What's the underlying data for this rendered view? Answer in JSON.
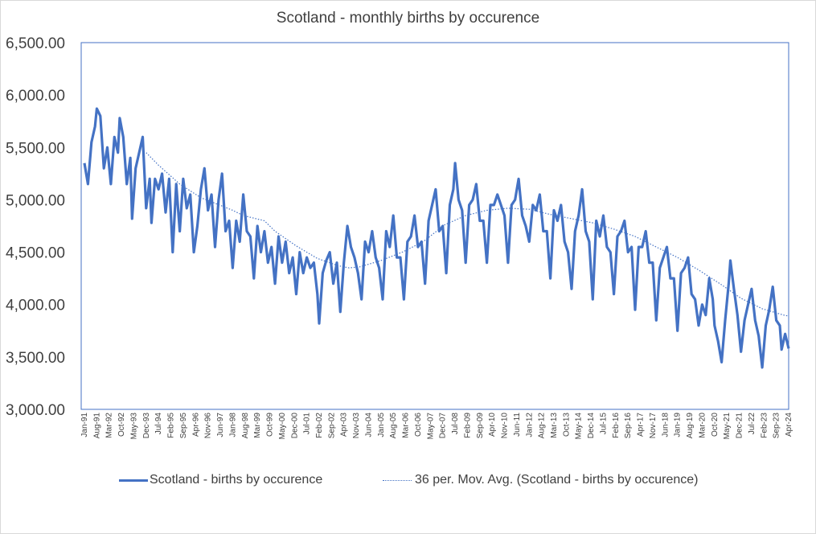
{
  "colors": {
    "series": "#4472c4",
    "axis": "#4472c4",
    "text": "#404040"
  },
  "chart_data": {
    "type": "line",
    "title": "Scotland - monthly births by occurence",
    "xlabel": "",
    "ylabel": "",
    "ylim": [
      3000,
      6500
    ],
    "yticks": [
      "3,000.00",
      "3,500.00",
      "4,000.00",
      "4,500.00",
      "5,000.00",
      "5,500.00",
      "6,000.00",
      "6,500.00"
    ],
    "xticks": [
      "Jan-91",
      "Aug-91",
      "Mar-92",
      "Oct-92",
      "May-93",
      "Dec-93",
      "Jul-94",
      "Feb-95",
      "Sep-95",
      "Apr-96",
      "Nov-96",
      "Jun-97",
      "Jan-98",
      "Aug-98",
      "Mar-99",
      "Oct-99",
      "May-00",
      "Dec-00",
      "Jul-01",
      "Feb-02",
      "Sep-02",
      "Apr-03",
      "Nov-03",
      "Jun-04",
      "Jan-05",
      "Aug-05",
      "Mar-06",
      "Oct-06",
      "May-07",
      "Dec-07",
      "Jul-08",
      "Feb-09",
      "Sep-09",
      "Apr-10",
      "Nov-10",
      "Jun-11",
      "Jan-12",
      "Aug-12",
      "Mar-13",
      "Oct-13",
      "May-14",
      "Dec-14",
      "Jul-15",
      "Feb-16",
      "Sep-16",
      "Apr-17",
      "Nov-17",
      "Jun-18",
      "Jan-19",
      "Aug-19",
      "Mar-20",
      "Oct-20",
      "May-21",
      "Dec-21",
      "Jul-22",
      "Feb-23",
      "Sep-23",
      "Apr-24"
    ],
    "grid": false,
    "legend_position": "bottom",
    "series": [
      {
        "name": "Scotland - births by occurence",
        "style": "solid",
        "anchors": [
          [
            "Jan-91",
            5350
          ],
          [
            "Mar-91",
            5150
          ],
          [
            "May-91",
            5550
          ],
          [
            "Jul-91",
            5700
          ],
          [
            "Aug-91",
            5870
          ],
          [
            "Oct-91",
            5800
          ],
          [
            "Dec-91",
            5300
          ],
          [
            "Feb-92",
            5500
          ],
          [
            "Apr-92",
            5150
          ],
          [
            "Jun-92",
            5600
          ],
          [
            "Aug-92",
            5450
          ],
          [
            "Sep-92",
            5780
          ],
          [
            "Nov-92",
            5600
          ],
          [
            "Jan-93",
            5150
          ],
          [
            "Mar-93",
            5400
          ],
          [
            "Apr-93",
            4820
          ],
          [
            "Jun-93",
            5300
          ],
          [
            "Aug-93",
            5450
          ],
          [
            "Oct-93",
            5600
          ],
          [
            "Dec-93",
            4920
          ],
          [
            "Feb-94",
            5200
          ],
          [
            "Mar-94",
            4780
          ],
          [
            "May-94",
            5200
          ],
          [
            "Jul-94",
            5100
          ],
          [
            "Sep-94",
            5250
          ],
          [
            "Nov-94",
            4880
          ],
          [
            "Jan-95",
            5200
          ],
          [
            "Mar-95",
            4500
          ],
          [
            "May-95",
            5150
          ],
          [
            "Jul-95",
            4700
          ],
          [
            "Sep-95",
            5200
          ],
          [
            "Nov-95",
            4920
          ],
          [
            "Jan-96",
            5050
          ],
          [
            "Mar-96",
            4500
          ],
          [
            "May-96",
            4750
          ],
          [
            "Jul-96",
            5100
          ],
          [
            "Sep-96",
            5300
          ],
          [
            "Nov-96",
            4900
          ],
          [
            "Jan-97",
            5050
          ],
          [
            "Mar-97",
            4550
          ],
          [
            "May-97",
            5000
          ],
          [
            "Jul-97",
            5250
          ],
          [
            "Sep-97",
            4700
          ],
          [
            "Nov-97",
            4800
          ],
          [
            "Jan-98",
            4350
          ],
          [
            "Mar-98",
            4800
          ],
          [
            "May-98",
            4600
          ],
          [
            "Jul-98",
            5050
          ],
          [
            "Sep-98",
            4700
          ],
          [
            "Nov-98",
            4650
          ],
          [
            "Jan-99",
            4250
          ],
          [
            "Mar-99",
            4750
          ],
          [
            "May-99",
            4500
          ],
          [
            "Jul-99",
            4700
          ],
          [
            "Sep-99",
            4400
          ],
          [
            "Nov-99",
            4550
          ],
          [
            "Jan-00",
            4200
          ],
          [
            "Mar-00",
            4650
          ],
          [
            "May-00",
            4400
          ],
          [
            "Jul-00",
            4600
          ],
          [
            "Sep-00",
            4300
          ],
          [
            "Nov-00",
            4450
          ],
          [
            "Jan-01",
            4100
          ],
          [
            "Mar-01",
            4500
          ],
          [
            "May-01",
            4300
          ],
          [
            "Jul-01",
            4450
          ],
          [
            "Sep-01",
            4350
          ],
          [
            "Nov-01",
            4400
          ],
          [
            "Jan-02",
            4100
          ],
          [
            "Feb-02",
            3820
          ],
          [
            "Apr-02",
            4300
          ],
          [
            "Jun-02",
            4420
          ],
          [
            "Aug-02",
            4500
          ],
          [
            "Oct-02",
            4200
          ],
          [
            "Dec-02",
            4400
          ],
          [
            "Feb-03",
            3930
          ],
          [
            "Apr-03",
            4400
          ],
          [
            "Jun-03",
            4750
          ],
          [
            "Aug-03",
            4550
          ],
          [
            "Oct-03",
            4450
          ],
          [
            "Dec-03",
            4300
          ],
          [
            "Feb-04",
            4050
          ],
          [
            "Apr-04",
            4600
          ],
          [
            "Jun-04",
            4500
          ],
          [
            "Aug-04",
            4700
          ],
          [
            "Oct-04",
            4450
          ],
          [
            "Dec-04",
            4350
          ],
          [
            "Feb-05",
            4050
          ],
          [
            "Apr-05",
            4700
          ],
          [
            "Jun-05",
            4550
          ],
          [
            "Aug-05",
            4850
          ],
          [
            "Oct-05",
            4450
          ],
          [
            "Dec-05",
            4450
          ],
          [
            "Feb-06",
            4050
          ],
          [
            "Apr-06",
            4600
          ],
          [
            "Jun-06",
            4650
          ],
          [
            "Aug-06",
            4850
          ],
          [
            "Oct-06",
            4550
          ],
          [
            "Dec-06",
            4600
          ],
          [
            "Feb-07",
            4200
          ],
          [
            "Apr-07",
            4800
          ],
          [
            "Jun-07",
            4950
          ],
          [
            "Aug-07",
            5100
          ],
          [
            "Oct-07",
            4700
          ],
          [
            "Dec-07",
            4750
          ],
          [
            "Feb-08",
            4300
          ],
          [
            "Apr-08",
            4950
          ],
          [
            "Jun-08",
            5100
          ],
          [
            "Jul-08",
            5350
          ],
          [
            "Sep-08",
            5000
          ],
          [
            "Nov-08",
            4900
          ],
          [
            "Jan-09",
            4400
          ],
          [
            "Mar-09",
            4950
          ],
          [
            "May-09",
            5000
          ],
          [
            "Jul-09",
            5150
          ],
          [
            "Sep-09",
            4800
          ],
          [
            "Nov-09",
            4800
          ],
          [
            "Jan-10",
            4400
          ],
          [
            "Mar-10",
            4950
          ],
          [
            "May-10",
            4950
          ],
          [
            "Jul-10",
            5050
          ],
          [
            "Sep-10",
            4950
          ],
          [
            "Nov-10",
            4850
          ],
          [
            "Jan-11",
            4400
          ],
          [
            "Mar-11",
            4950
          ],
          [
            "May-11",
            5000
          ],
          [
            "Jul-11",
            5200
          ],
          [
            "Sep-11",
            4850
          ],
          [
            "Nov-11",
            4750
          ],
          [
            "Jan-12",
            4600
          ],
          [
            "Mar-12",
            4950
          ],
          [
            "May-12",
            4900
          ],
          [
            "Jul-12",
            5050
          ],
          [
            "Sep-12",
            4700
          ],
          [
            "Nov-12",
            4700
          ],
          [
            "Jan-13",
            4250
          ],
          [
            "Mar-13",
            4900
          ],
          [
            "May-13",
            4800
          ],
          [
            "Jul-13",
            4950
          ],
          [
            "Sep-13",
            4600
          ],
          [
            "Nov-13",
            4500
          ],
          [
            "Jan-14",
            4150
          ],
          [
            "Mar-14",
            4700
          ],
          [
            "May-14",
            4850
          ],
          [
            "Jul-14",
            5100
          ],
          [
            "Sep-14",
            4700
          ],
          [
            "Nov-14",
            4600
          ],
          [
            "Jan-15",
            4050
          ],
          [
            "Mar-15",
            4800
          ],
          [
            "May-15",
            4650
          ],
          [
            "Jul-15",
            4850
          ],
          [
            "Sep-15",
            4550
          ],
          [
            "Nov-15",
            4500
          ],
          [
            "Jan-16",
            4100
          ],
          [
            "Mar-16",
            4650
          ],
          [
            "May-16",
            4700
          ],
          [
            "Jul-16",
            4800
          ],
          [
            "Sep-16",
            4500
          ],
          [
            "Nov-16",
            4550
          ],
          [
            "Jan-17",
            3950
          ],
          [
            "Mar-17",
            4550
          ],
          [
            "May-17",
            4550
          ],
          [
            "Jul-17",
            4700
          ],
          [
            "Sep-17",
            4400
          ],
          [
            "Nov-17",
            4400
          ],
          [
            "Jan-18",
            3850
          ],
          [
            "Mar-18",
            4350
          ],
          [
            "May-18",
            4450
          ],
          [
            "Jul-18",
            4550
          ],
          [
            "Sep-18",
            4250
          ],
          [
            "Nov-18",
            4250
          ],
          [
            "Jan-19",
            3750
          ],
          [
            "Mar-19",
            4300
          ],
          [
            "May-19",
            4350
          ],
          [
            "Jul-19",
            4450
          ],
          [
            "Sep-19",
            4100
          ],
          [
            "Nov-19",
            4050
          ],
          [
            "Jan-20",
            3800
          ],
          [
            "Mar-20",
            4000
          ],
          [
            "May-20",
            3900
          ],
          [
            "Jul-20",
            4250
          ],
          [
            "Sep-20",
            4050
          ],
          [
            "Oct-20",
            3800
          ],
          [
            "Dec-20",
            3650
          ],
          [
            "Feb-21",
            3450
          ],
          [
            "Apr-21",
            3850
          ],
          [
            "Jun-21",
            4200
          ],
          [
            "Jul-21",
            4420
          ],
          [
            "Sep-21",
            4150
          ],
          [
            "Nov-21",
            3900
          ],
          [
            "Jan-22",
            3550
          ],
          [
            "Mar-22",
            3850
          ],
          [
            "May-22",
            4000
          ],
          [
            "Jul-22",
            4150
          ],
          [
            "Sep-22",
            3850
          ],
          [
            "Nov-22",
            3700
          ],
          [
            "Jan-23",
            3400
          ],
          [
            "Mar-23",
            3800
          ],
          [
            "May-23",
            3950
          ],
          [
            "Jul-23",
            4170
          ],
          [
            "Sep-23",
            3850
          ],
          [
            "Nov-23",
            3800
          ],
          [
            "Dec-23",
            3570
          ],
          [
            "Feb-24",
            3720
          ],
          [
            "Apr-24",
            3580
          ]
        ]
      },
      {
        "name": "36 per. Mov. Avg. (Scotland - births by occurence)",
        "style": "dotted",
        "anchors": [
          [
            "Dec-93",
            5450
          ],
          [
            "Jul-94",
            5330
          ],
          [
            "Jul-95",
            5150
          ],
          [
            "Jul-96",
            5020
          ],
          [
            "Jul-97",
            4940
          ],
          [
            "Jan-98",
            4900
          ],
          [
            "Jul-98",
            4850
          ],
          [
            "Jul-99",
            4800
          ],
          [
            "Jan-00",
            4700
          ],
          [
            "Jan-01",
            4560
          ],
          [
            "Jan-02",
            4440
          ],
          [
            "Jan-03",
            4370
          ],
          [
            "Jul-03",
            4350
          ],
          [
            "Jan-04",
            4360
          ],
          [
            "Jan-05",
            4420
          ],
          [
            "Jan-06",
            4500
          ],
          [
            "Jan-07",
            4600
          ],
          [
            "Jan-08",
            4760
          ],
          [
            "Jan-09",
            4850
          ],
          [
            "Jan-10",
            4900
          ],
          [
            "Jan-11",
            4920
          ],
          [
            "Jan-12",
            4910
          ],
          [
            "Jan-13",
            4860
          ],
          [
            "Jan-14",
            4820
          ],
          [
            "Jan-15",
            4780
          ],
          [
            "Jan-16",
            4720
          ],
          [
            "Jan-17",
            4650
          ],
          [
            "Jan-18",
            4550
          ],
          [
            "Jan-19",
            4450
          ],
          [
            "Jan-20",
            4330
          ],
          [
            "Jan-21",
            4200
          ],
          [
            "Jan-22",
            4060
          ],
          [
            "Jan-23",
            3960
          ],
          [
            "Jan-24",
            3900
          ],
          [
            "Apr-24",
            3890
          ]
        ]
      }
    ]
  },
  "legend": {
    "items": [
      {
        "label": "Scotland - births by occurence"
      },
      {
        "label": "36 per. Mov. Avg. (Scotland - births by occurence)"
      }
    ]
  }
}
